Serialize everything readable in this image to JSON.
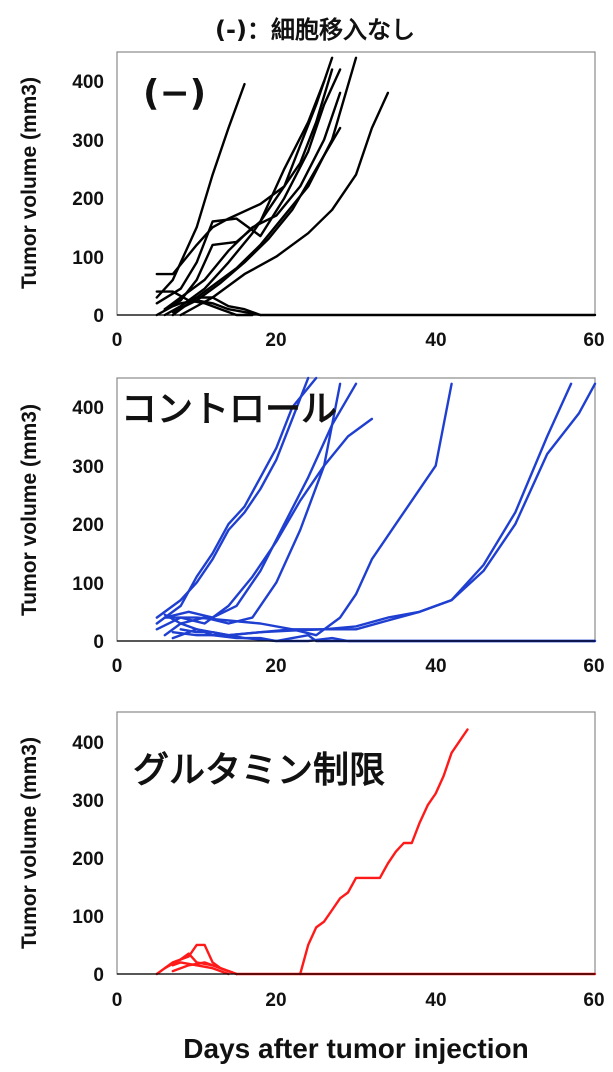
{
  "chart_data": [
    {
      "type": "line",
      "title": "(-)：細胞移入なし",
      "panel_label": "(−)",
      "color": "#000000",
      "xlabel": "",
      "ylabel": "Tumor volume (mm3)",
      "xlim": [
        0,
        60
      ],
      "ylim": [
        0,
        450
      ],
      "xticks": [
        "0",
        "20",
        "40",
        "60"
      ],
      "yticks": [
        "0",
        "100",
        "200",
        "300",
        "400"
      ],
      "series": [
        {
          "x": [
            5,
            7,
            10,
            12,
            14,
            16
          ],
          "y": [
            30,
            60,
            150,
            240,
            320,
            395
          ]
        },
        {
          "x": [
            5,
            7,
            8,
            10,
            12,
            14,
            16,
            18
          ],
          "y": [
            0,
            15,
            20,
            25,
            20,
            10,
            5,
            0
          ]
        },
        {
          "x": [
            5,
            7,
            9,
            11,
            13,
            15,
            17
          ],
          "y": [
            40,
            40,
            25,
            20,
            10,
            0,
            0
          ]
        },
        {
          "x": [
            5,
            7,
            10,
            12,
            14,
            18,
            21,
            23,
            25,
            27
          ],
          "y": [
            70,
            70,
            120,
            150,
            165,
            190,
            220,
            290,
            360,
            440
          ]
        },
        {
          "x": [
            5,
            8,
            10,
            12,
            15,
            18,
            21,
            24,
            26,
            28
          ],
          "y": [
            20,
            45,
            90,
            160,
            165,
            135,
            200,
            280,
            360,
            420
          ]
        },
        {
          "x": [
            6,
            8,
            10,
            12,
            15,
            18,
            21,
            24,
            26
          ],
          "y": [
            10,
            25,
            60,
            120,
            125,
            160,
            250,
            330,
            400
          ]
        },
        {
          "x": [
            6,
            8,
            11,
            14,
            17,
            20,
            23,
            25,
            27
          ],
          "y": [
            0,
            15,
            45,
            90,
            140,
            200,
            260,
            330,
            420
          ]
        },
        {
          "x": [
            6,
            8,
            11,
            14,
            17,
            20,
            23,
            26,
            28
          ],
          "y": [
            10,
            30,
            60,
            110,
            150,
            170,
            220,
            300,
            380
          ]
        },
        {
          "x": [
            7,
            9,
            12,
            15,
            18,
            21,
            24,
            27,
            30
          ],
          "y": [
            0,
            20,
            50,
            80,
            120,
            170,
            220,
            300,
            440
          ]
        },
        {
          "x": [
            7,
            10,
            13,
            16,
            19,
            22,
            25,
            28
          ],
          "y": [
            5,
            25,
            55,
            90,
            130,
            180,
            250,
            320
          ]
        },
        {
          "x": [
            8,
            12,
            16,
            20,
            24,
            27,
            30,
            32,
            34
          ],
          "y": [
            0,
            30,
            70,
            100,
            140,
            180,
            240,
            320,
            380
          ]
        },
        {
          "x": [
            9,
            10,
            12,
            14,
            16,
            17,
            18,
            60
          ],
          "y": [
            25,
            30,
            30,
            15,
            10,
            5,
            0,
            0
          ]
        }
      ]
    },
    {
      "type": "line",
      "title": "",
      "panel_label": "コントロール",
      "color": "#1f3fd1",
      "xlabel": "",
      "ylabel": "Tumor volume (mm3)",
      "xlim": [
        0,
        60
      ],
      "ylim": [
        0,
        450
      ],
      "xticks": [
        "0",
        "20",
        "40",
        "60"
      ],
      "yticks": [
        "0",
        "100",
        "200",
        "300",
        "400"
      ],
      "series": [
        {
          "x": [
            5,
            8,
            10,
            12,
            14,
            16,
            18,
            20,
            22,
            24
          ],
          "y": [
            40,
            70,
            100,
            140,
            190,
            220,
            260,
            310,
            380,
            450
          ]
        },
        {
          "x": [
            5,
            8,
            10,
            12,
            14,
            16,
            18,
            20,
            22,
            25
          ],
          "y": [
            30,
            60,
            110,
            150,
            200,
            230,
            280,
            330,
            400,
            450
          ]
        },
        {
          "x": [
            5,
            8,
            11,
            14,
            17,
            20,
            23,
            26,
            29,
            32
          ],
          "y": [
            20,
            40,
            30,
            60,
            110,
            170,
            240,
            300,
            350,
            380
          ]
        },
        {
          "x": [
            6,
            9,
            12,
            15,
            18,
            21,
            24,
            27,
            30
          ],
          "y": [
            40,
            50,
            40,
            60,
            120,
            200,
            280,
            370,
            440
          ]
        },
        {
          "x": [
            6,
            8,
            11,
            14,
            17,
            20,
            23,
            26,
            28
          ],
          "y": [
            10,
            30,
            40,
            30,
            40,
            100,
            190,
            300,
            440
          ]
        },
        {
          "x": [
            6,
            10,
            14,
            18,
            22,
            25,
            28,
            30,
            32,
            35,
            37,
            40,
            42
          ],
          "y": [
            40,
            40,
            35,
            30,
            20,
            10,
            40,
            80,
            140,
            200,
            240,
            300,
            440
          ]
        },
        {
          "x": [
            7,
            10,
            14,
            18,
            22,
            26,
            30,
            34,
            38,
            42,
            46,
            50,
            54,
            57
          ],
          "y": [
            5,
            20,
            10,
            15,
            20,
            20,
            25,
            40,
            50,
            70,
            130,
            220,
            350,
            440
          ]
        },
        {
          "x": [
            7,
            10,
            14,
            18,
            22,
            26,
            30,
            34,
            38,
            42,
            46,
            50,
            54,
            58,
            60
          ],
          "y": [
            15,
            10,
            10,
            15,
            18,
            20,
            20,
            35,
            50,
            70,
            120,
            200,
            320,
            390,
            440
          ]
        },
        {
          "x": [
            6,
            8,
            10,
            12,
            15,
            18,
            20,
            22,
            24,
            25,
            26,
            30,
            35,
            60
          ],
          "y": [
            45,
            30,
            20,
            10,
            5,
            5,
            0,
            5,
            10,
            0,
            0,
            0,
            0,
            0
          ]
        },
        {
          "x": [
            8,
            10,
            12,
            14,
            16,
            20,
            24,
            27,
            29,
            60
          ],
          "y": [
            20,
            15,
            15,
            10,
            5,
            0,
            0,
            5,
            0,
            0
          ]
        }
      ]
    },
    {
      "type": "line",
      "title": "",
      "panel_label": "グルタミン制限",
      "color": "#ff1a1a",
      "xlabel": "Days after tumor injection",
      "ylabel": "Tumor volume (mm3)",
      "xlim": [
        0,
        60
      ],
      "ylim": [
        0,
        450
      ],
      "xticks": [
        "0",
        "20",
        "40",
        "60"
      ],
      "yticks": [
        "0",
        "100",
        "200",
        "300",
        "400"
      ],
      "series": [
        {
          "x": [
            5,
            7,
            9,
            10,
            11,
            12,
            13,
            14,
            15,
            60
          ],
          "y": [
            0,
            20,
            30,
            50,
            50,
            20,
            10,
            5,
            0,
            0
          ]
        },
        {
          "x": [
            6,
            8,
            9,
            10,
            12,
            14,
            15
          ],
          "y": [
            10,
            25,
            35,
            20,
            15,
            5,
            0
          ]
        },
        {
          "x": [
            7,
            8,
            10,
            12,
            14
          ],
          "y": [
            15,
            20,
            15,
            10,
            0
          ]
        },
        {
          "x": [
            7,
            9,
            11,
            13,
            15
          ],
          "y": [
            5,
            15,
            20,
            10,
            0
          ]
        },
        {
          "x": [
            23,
            24,
            25,
            26,
            27,
            28,
            29,
            30,
            32,
            33,
            34,
            35,
            36,
            37,
            38,
            39,
            40,
            41,
            42,
            43,
            44
          ],
          "y": [
            0,
            50,
            80,
            90,
            110,
            130,
            140,
            165,
            165,
            165,
            190,
            210,
            225,
            225,
            260,
            290,
            310,
            340,
            380,
            400,
            420
          ]
        }
      ]
    }
  ]
}
